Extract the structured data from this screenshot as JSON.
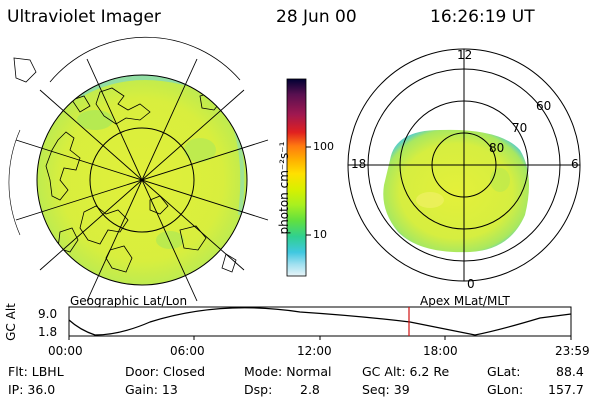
{
  "header": {
    "title": "Ultraviolet Imager",
    "date": "28 Jun 00",
    "time": "16:26:19 UT"
  },
  "left_panel": {
    "caption": "Geographic Lat/Lon"
  },
  "right_panel": {
    "caption": "Apex MLat/MLT",
    "mlt_labels": [
      "12",
      "18",
      "6",
      "0"
    ],
    "mlat_labels": [
      "60",
      "70",
      "80"
    ]
  },
  "colorbar": {
    "unit_label": "photon cm⁻²s⁻¹",
    "ticks": [
      "100",
      "10"
    ],
    "colors": [
      "#000033",
      "#5a1050",
      "#a01850",
      "#e02020",
      "#ff7a10",
      "#ffb000",
      "#ffe000",
      "#d8f000",
      "#a8f020",
      "#60e040",
      "#30d090",
      "#40c8e0",
      "#a0e0f0",
      "#e8f4f8"
    ]
  },
  "altitude_plot": {
    "y_label": "GC Alt",
    "y_ticks": [
      "9.0",
      "1.8"
    ],
    "x_ticks": [
      "00:00",
      "06:00",
      "12:00",
      "18:00",
      "23:59"
    ],
    "current_time_marker_color": "#d01010"
  },
  "status": {
    "filter": "Flt: LBHL",
    "ip": "IP: 36.0",
    "door": "Door: Closed",
    "gain": "Gain: 13",
    "mode": "Mode: Normal",
    "dsp_label": "Dsp:",
    "dsp_value": "2.8",
    "gc_alt": "GC Alt: 6.2 Re",
    "seq": "Seq: 39",
    "glat_label": "GLat:",
    "glat_value": "88.4",
    "glon_label": "GLon:",
    "glon_value": "157.7"
  },
  "colors": {
    "auroral_fill": "#dcef3a",
    "auroral_spot": "#9ee860",
    "auroral_edge": "#60d0c0"
  }
}
